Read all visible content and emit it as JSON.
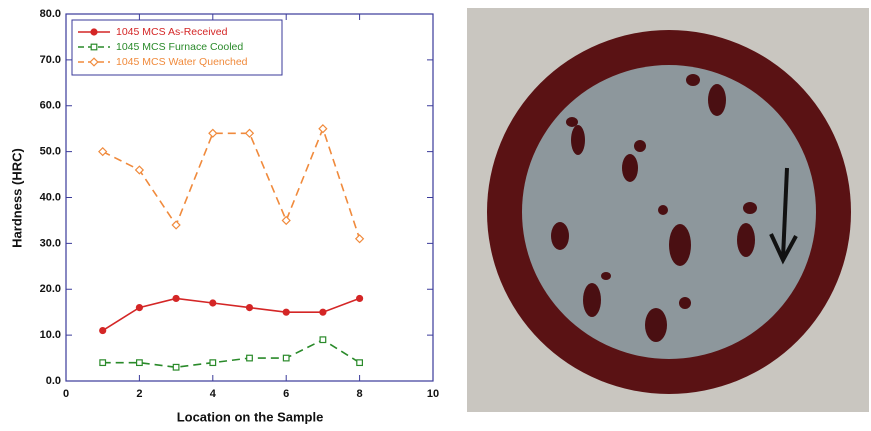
{
  "chart_data": {
    "type": "line",
    "x_label": "Location on the Sample",
    "y_label": "Hardness (HRC)",
    "x": [
      1,
      2,
      3,
      4,
      5,
      6,
      7,
      8
    ],
    "series": [
      {
        "name": "1045 MCS As-Received",
        "color": "#d42626",
        "marker": "circle",
        "linestyle": "solid",
        "values": [
          11,
          16,
          18,
          17,
          16,
          15,
          15,
          18
        ]
      },
      {
        "name": "1045 MCS Furnace Cooled",
        "color": "#2a8a2a",
        "marker": "square",
        "linestyle": "dashed",
        "values": [
          4,
          4,
          3,
          4,
          5,
          5,
          9,
          4
        ]
      },
      {
        "name": "1045  MCS Water Quenched",
        "color": "#f08a3c",
        "marker": "diamond",
        "linestyle": "dashed",
        "values": [
          50,
          46,
          34,
          54,
          54,
          35,
          55,
          31
        ]
      }
    ],
    "xlim": [
      0,
      10
    ],
    "xticks": [
      0,
      2,
      4,
      6,
      8,
      10
    ],
    "ylim": [
      0,
      80
    ],
    "yticks": [
      {
        "value": 0,
        "label": "0.0"
      },
      {
        "value": 10,
        "label": "10.0"
      },
      {
        "value": 20,
        "label": "20.0"
      },
      {
        "value": 30,
        "label": "30.0"
      },
      {
        "value": 40,
        "label": "40.0"
      },
      {
        "value": 50,
        "label": "50.0"
      },
      {
        "value": 60,
        "label": "60.0"
      },
      {
        "value": 70,
        "label": "70.0"
      },
      {
        "value": 80,
        "label": "80.0"
      }
    ],
    "grid": false,
    "legend_position": "upper-left"
  }
}
